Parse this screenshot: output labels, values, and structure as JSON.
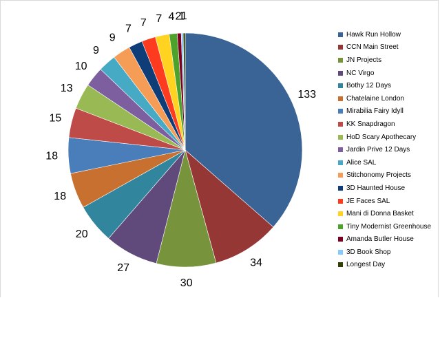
{
  "chart_data": {
    "type": "pie",
    "legend_position": "right",
    "slices": [
      {
        "label": "Hawk Run Hollow",
        "value": 133,
        "color": "#3B6496"
      },
      {
        "label": "CCN Main Street",
        "value": 34,
        "color": "#953735"
      },
      {
        "label": "JN Projects",
        "value": 30,
        "color": "#77933C"
      },
      {
        "label": "NC Virgo",
        "value": 27,
        "color": "#604A7B"
      },
      {
        "label": "Bothy 12 Days",
        "value": 20,
        "color": "#31859C"
      },
      {
        "label": "Chatelaine London",
        "value": 18,
        "color": "#C8702F"
      },
      {
        "label": "Mirabilia Fairy Idyll",
        "value": 18,
        "color": "#4A7EBB"
      },
      {
        "label": "KK Snapdragon",
        "value": 15,
        "color": "#BE4B48"
      },
      {
        "label": "HoD Scary Apothecary",
        "value": 13,
        "color": "#98B954"
      },
      {
        "label": "Jardin Prive 12 Days",
        "value": 10,
        "color": "#7D5FA0"
      },
      {
        "label": "Alice SAL",
        "value": 9,
        "color": "#46AAC5"
      },
      {
        "label": "Stitchonomy Projects",
        "value": 9,
        "color": "#F59D56"
      },
      {
        "label": "3D Haunted House",
        "value": 7,
        "color": "#0E3D78"
      },
      {
        "label": "JE Faces SAL",
        "value": 7,
        "color": "#FF3B1F"
      },
      {
        "label": "Mani di Donna Basket",
        "value": 7,
        "color": "#FFD320"
      },
      {
        "label": "Tiny Modernist Greenhouse",
        "value": 4,
        "color": "#4CA22A"
      },
      {
        "label": "Amanda Butler House",
        "value": 2,
        "color": "#7E0021"
      },
      {
        "label": "3D Book Shop",
        "value": 1,
        "color": "#83CAFF"
      },
      {
        "label": "Longest Day",
        "value": 1,
        "color": "#314004"
      }
    ]
  }
}
